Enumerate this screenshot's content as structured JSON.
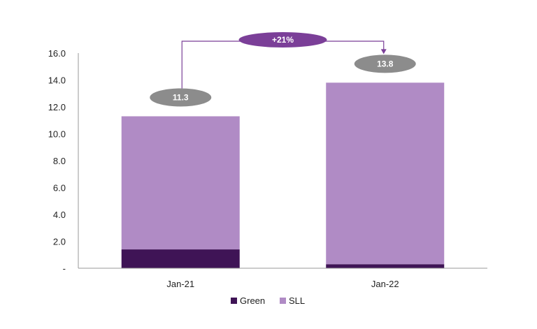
{
  "chart_data": {
    "type": "bar",
    "stacked": true,
    "categories": [
      "Jan-21",
      "Jan-22"
    ],
    "series": [
      {
        "name": "Green",
        "values": [
          1.4,
          0.3
        ],
        "color": "#3f1456"
      },
      {
        "name": "SLL",
        "values": [
          9.9,
          13.5
        ],
        "color": "#b08bc5"
      }
    ],
    "totals": [
      "11.3",
      "13.8"
    ],
    "change_label": "+21%",
    "ylim": [
      0,
      16
    ],
    "yticks": [
      0,
      2,
      4,
      6,
      8,
      10,
      12,
      14,
      16
    ],
    "ytick_labels": [
      "-",
      "2.0",
      "4.0",
      "6.0",
      "8.0",
      "10.0",
      "12.0",
      "14.0",
      "16.0"
    ],
    "legend_position": "bottom",
    "grid": false,
    "colors": {
      "total_bubble": "#8c8c8c",
      "change_bubble": "#7b3f98",
      "connector": "#7b3f98",
      "axis": "#999999"
    }
  }
}
